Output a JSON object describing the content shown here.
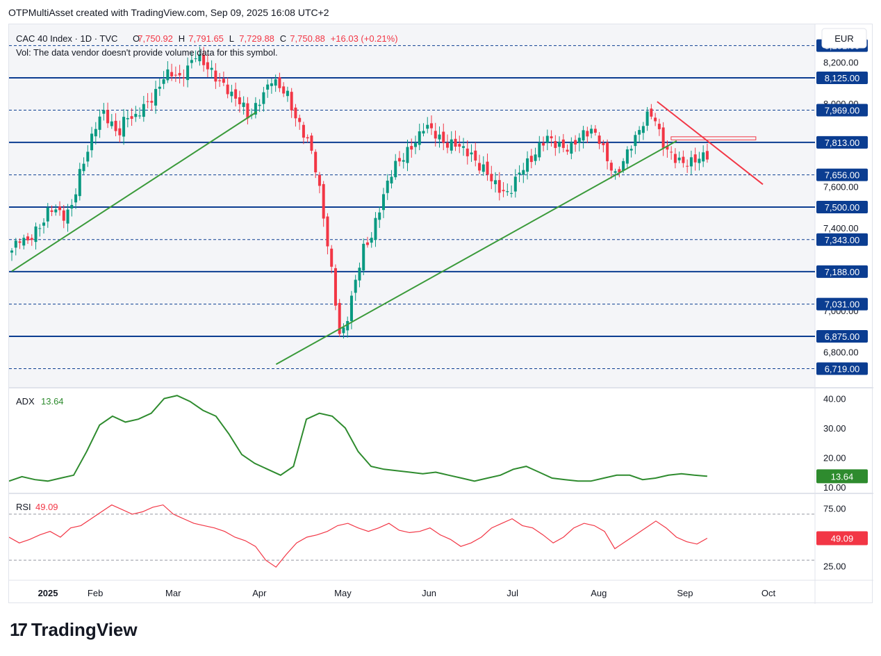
{
  "header": {
    "text": "OTPMultiAsset created with TradingView.com, Sep 09, 2025 16:08 UTC+2"
  },
  "brand": {
    "logo_glyph": "17",
    "name": "TradingView"
  },
  "legend": {
    "symbol": "CAC 40 Index · 1D · TVC",
    "open_label": "O",
    "open": "7,750.92",
    "high_label": "H",
    "high": "7,791.65",
    "low_label": "L",
    "low": "7,729.88",
    "close_label": "C",
    "close": "7,750.88",
    "change": "+16.03 (+0.21%)",
    "volume_note": "Vol: The data vendor doesn't provide volume data for this symbol."
  },
  "currency": "EUR",
  "colors": {
    "up": "#089981",
    "down": "#f23645",
    "level": "#0b3d91",
    "trend_up": "#3a9a3a",
    "trend_down": "#f23645",
    "adx": "#2e8b2e",
    "rsi": "#f23645"
  },
  "chart_data": [
    {
      "type": "candlestick",
      "title": "CAC 40 Index · 1D · TVC",
      "ylim": [
        6650,
        8330
      ],
      "y_ticks": [
        "8,200.00",
        "8,000.00",
        "7,600.00",
        "7,400.00",
        "7,000.00",
        "6,800.00"
      ],
      "x_ticks": [
        "2025",
        "Feb",
        "Mar",
        "Apr",
        "May",
        "Jun",
        "Jul",
        "Aug",
        "Sep",
        "Oct"
      ],
      "levels": [
        {
          "value": 8281,
          "label": "8,281.00",
          "style": "dashed"
        },
        {
          "value": 8125,
          "label": "8,125.00",
          "style": "solid"
        },
        {
          "value": 7969,
          "label": "7,969.00",
          "style": "dashed"
        },
        {
          "value": 7813,
          "label": "7,813.00",
          "style": "solid"
        },
        {
          "value": 7656,
          "label": "7,656.00",
          "style": "dashed"
        },
        {
          "value": 7500,
          "label": "7,500.00",
          "style": "solid"
        },
        {
          "value": 7343,
          "label": "7,343.00",
          "style": "dashed"
        },
        {
          "value": 7188,
          "label": "7,188.00",
          "style": "solid"
        },
        {
          "value": 7031,
          "label": "7,031.00",
          "style": "dashed"
        },
        {
          "value": 6875,
          "label": "6,875.00",
          "style": "solid"
        },
        {
          "value": 6719,
          "label": "6,719.00",
          "style": "dashed"
        }
      ],
      "close_path": [
        7290,
        7350,
        7330,
        7380,
        7420,
        7500,
        7480,
        7450,
        7520,
        7680,
        7780,
        7900,
        7960,
        7900,
        7850,
        7950,
        7920,
        7980,
        8010,
        8060,
        8140,
        8150,
        8120,
        8170,
        8240,
        8200,
        8160,
        8110,
        8080,
        8030,
        8010,
        7930,
        7990,
        8050,
        8120,
        8080,
        8050,
        7940,
        7870,
        7800,
        7650,
        7400,
        7150,
        6850,
        6980,
        7150,
        7300,
        7350,
        7480,
        7600,
        7700,
        7730,
        7780,
        7820,
        7900,
        7870,
        7830,
        7800,
        7810,
        7780,
        7760,
        7700,
        7680,
        7620,
        7580,
        7560,
        7640,
        7700,
        7730,
        7790,
        7840,
        7810,
        7790,
        7780,
        7830,
        7860,
        7870,
        7820,
        7720,
        7650,
        7720,
        7800,
        7860,
        7940,
        7950,
        7820,
        7760,
        7730,
        7710,
        7720,
        7740,
        7750.88
      ],
      "trendlines": [
        {
          "name": "support-1",
          "from": [
            "2025-01-02",
            7190
          ],
          "to": [
            "2025-03-31",
            7960
          ]
        },
        {
          "name": "support-2",
          "from": [
            "2025-04-07",
            6740
          ],
          "to": [
            "2025-08-29",
            7820
          ]
        },
        {
          "name": "resistance",
          "from": [
            "2025-08-22",
            8010
          ],
          "to": [
            "2025-09-29",
            7610
          ]
        }
      ]
    },
    {
      "type": "line",
      "title": "ADX",
      "value_label": "13.64",
      "ylim": [
        9,
        42
      ],
      "y_ticks": [
        "40.00",
        "30.00",
        "20.00",
        "10.00"
      ],
      "values": [
        12,
        13.5,
        12.5,
        12,
        13,
        14,
        22,
        31,
        34,
        32,
        33,
        35,
        40,
        41,
        39,
        36,
        34,
        28,
        21,
        18,
        16,
        14,
        17,
        33,
        35,
        34,
        30,
        22,
        17,
        16,
        15.5,
        15,
        14.5,
        15,
        14,
        13,
        12,
        13,
        14,
        16,
        17,
        15,
        13,
        12.5,
        12,
        12,
        13,
        14,
        14,
        12.5,
        13,
        14,
        14.5,
        14,
        13.64
      ]
    },
    {
      "type": "line",
      "title": "RSI",
      "value_label": "49.09",
      "ylim": [
        15,
        85
      ],
      "y_ticks": [
        "75.00",
        "25.00"
      ],
      "levels": [
        70,
        30
      ],
      "values": [
        50,
        45,
        48,
        52,
        55,
        50,
        58,
        60,
        66,
        72,
        78,
        74,
        70,
        72,
        76,
        78,
        70,
        66,
        62,
        60,
        58,
        55,
        50,
        47,
        42,
        30,
        24,
        35,
        45,
        50,
        52,
        55,
        60,
        62,
        58,
        55,
        58,
        62,
        56,
        54,
        55,
        58,
        52,
        48,
        42,
        45,
        50,
        58,
        62,
        66,
        60,
        58,
        52,
        45,
        50,
        58,
        62,
        60,
        55,
        40,
        46,
        52,
        58,
        64,
        58,
        50,
        46,
        44,
        49.09
      ]
    }
  ]
}
